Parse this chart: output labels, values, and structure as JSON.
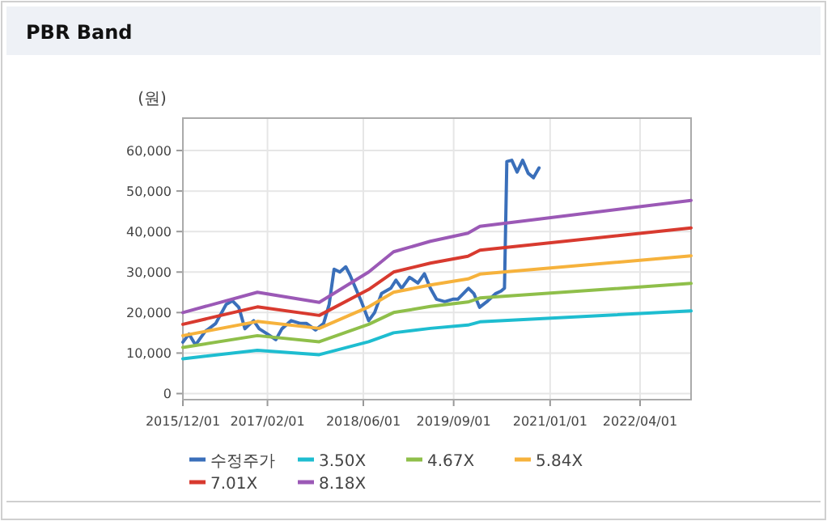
{
  "chart_data": {
    "type": "line",
    "title": "PBR Band",
    "ylabel": "(원)",
    "xlim": [
      "2015-12-01",
      "2022-12-15"
    ],
    "ylim": [
      -1500,
      68000
    ],
    "xticks": [
      {
        "value": "2015-12-01",
        "label": "2015/12/01"
      },
      {
        "value": "2017-02-01",
        "label": "2017/02/01"
      },
      {
        "value": "2018-06-01",
        "label": "2018/06/01"
      },
      {
        "value": "2019-09-01",
        "label": "2019/09/01"
      },
      {
        "value": "2021-01-01",
        "label": "2021/01/01"
      },
      {
        "value": "2022-04-01",
        "label": "2022/04/01"
      }
    ],
    "yticks": [
      0,
      {
        "value": 10000,
        "label": "10,000"
      },
      {
        "value": 20000,
        "label": "20,000"
      },
      {
        "value": 30000,
        "label": "30,000"
      },
      {
        "value": 40000,
        "label": "40,000"
      },
      {
        "value": 50000,
        "label": "50,000"
      },
      {
        "value": 60000,
        "label": "60,000"
      }
    ],
    "grid": true,
    "legend": "bottom",
    "series": [
      {
        "name": "수정주가",
        "color": "#3a6fba",
        "x": [
          "2015-12-01",
          "2016-01-01",
          "2016-02-03",
          "2016-03-22",
          "2016-05-15",
          "2016-07-07",
          "2016-08-08",
          "2016-09-09",
          "2016-10-10",
          "2016-10-25",
          "2016-11-23",
          "2016-12-21",
          "2017-02-01",
          "2017-03-15",
          "2017-04-15",
          "2017-06-01",
          "2017-07-18",
          "2017-08-18",
          "2017-10-02",
          "2017-11-12",
          "2017-12-10",
          "2018-01-04",
          "2018-02-02",
          "2018-03-04",
          "2018-03-25",
          "2018-05-22",
          "2018-06-28",
          "2018-07-28",
          "2018-09-01",
          "2018-10-18",
          "2018-11-13",
          "2018-12-12",
          "2019-01-21",
          "2019-03-04",
          "2019-04-06",
          "2019-05-06",
          "2019-06-06",
          "2019-07-18",
          "2019-08-28",
          "2019-09-22",
          "2019-11-15",
          "2019-12-12",
          "2020-01-10",
          "2020-02-21",
          "2020-04-01",
          "2020-04-28",
          "2020-05-15",
          "2020-05-27",
          "2020-06-21",
          "2020-07-18",
          "2020-08-15",
          "2020-09-12",
          "2020-10-09",
          "2020-11-06"
        ],
        "values": [
          12700,
          14700,
          12000,
          15300,
          17300,
          22000,
          22900,
          21300,
          16000,
          16700,
          18000,
          16000,
          14700,
          13300,
          16000,
          18000,
          17300,
          17300,
          15700,
          17300,
          22000,
          30700,
          30000,
          31300,
          29300,
          22700,
          18000,
          20000,
          24700,
          26000,
          28000,
          26000,
          28700,
          27300,
          29600,
          26000,
          23300,
          22700,
          23300,
          23300,
          26000,
          24700,
          21300,
          22900,
          24700,
          25300,
          26000,
          57300,
          57600,
          54700,
          57600,
          54400,
          53300,
          55700
        ]
      },
      {
        "name": "3.50X",
        "color": "#1ebdd0",
        "x": [
          "2015-12-01",
          "2016-12-12",
          "2017-10-21",
          "2018-06-28",
          "2018-11-01",
          "2019-05-06",
          "2019-11-12",
          "2020-01-12",
          "2022-12-15"
        ],
        "values": [
          8600,
          10700,
          9600,
          12800,
          15000,
          16100,
          16900,
          17700,
          20400
        ]
      },
      {
        "name": "4.67X",
        "color": "#8fbf4a",
        "x": [
          "2015-12-01",
          "2016-12-12",
          "2017-10-21",
          "2018-06-28",
          "2018-11-01",
          "2019-05-06",
          "2019-11-12",
          "2020-01-12",
          "2022-12-15"
        ],
        "values": [
          11400,
          14300,
          12800,
          17100,
          20000,
          21500,
          22600,
          23600,
          27200
        ]
      },
      {
        "name": "5.84X",
        "color": "#f6b23c",
        "x": [
          "2015-12-01",
          "2016-12-12",
          "2017-10-21",
          "2018-06-28",
          "2018-11-01",
          "2019-05-06",
          "2019-11-12",
          "2020-01-12",
          "2022-12-15"
        ],
        "values": [
          14300,
          17800,
          16100,
          21400,
          25000,
          26800,
          28300,
          29500,
          34000
        ]
      },
      {
        "name": "7.01X",
        "color": "#d83a2f",
        "x": [
          "2015-12-01",
          "2016-12-12",
          "2017-10-21",
          "2018-06-28",
          "2018-11-01",
          "2019-05-06",
          "2019-11-12",
          "2020-01-12",
          "2022-12-15"
        ],
        "values": [
          17100,
          21400,
          19300,
          25700,
          30000,
          32200,
          33900,
          35400,
          40900
        ]
      },
      {
        "name": "8.18X",
        "color": "#9b59b6",
        "x": [
          "2015-12-01",
          "2016-12-12",
          "2017-10-21",
          "2018-06-28",
          "2018-11-01",
          "2019-05-06",
          "2019-11-12",
          "2020-01-12",
          "2022-12-15"
        ],
        "values": [
          20000,
          25000,
          22500,
          30000,
          35000,
          37600,
          39600,
          41300,
          47700
        ]
      }
    ]
  }
}
